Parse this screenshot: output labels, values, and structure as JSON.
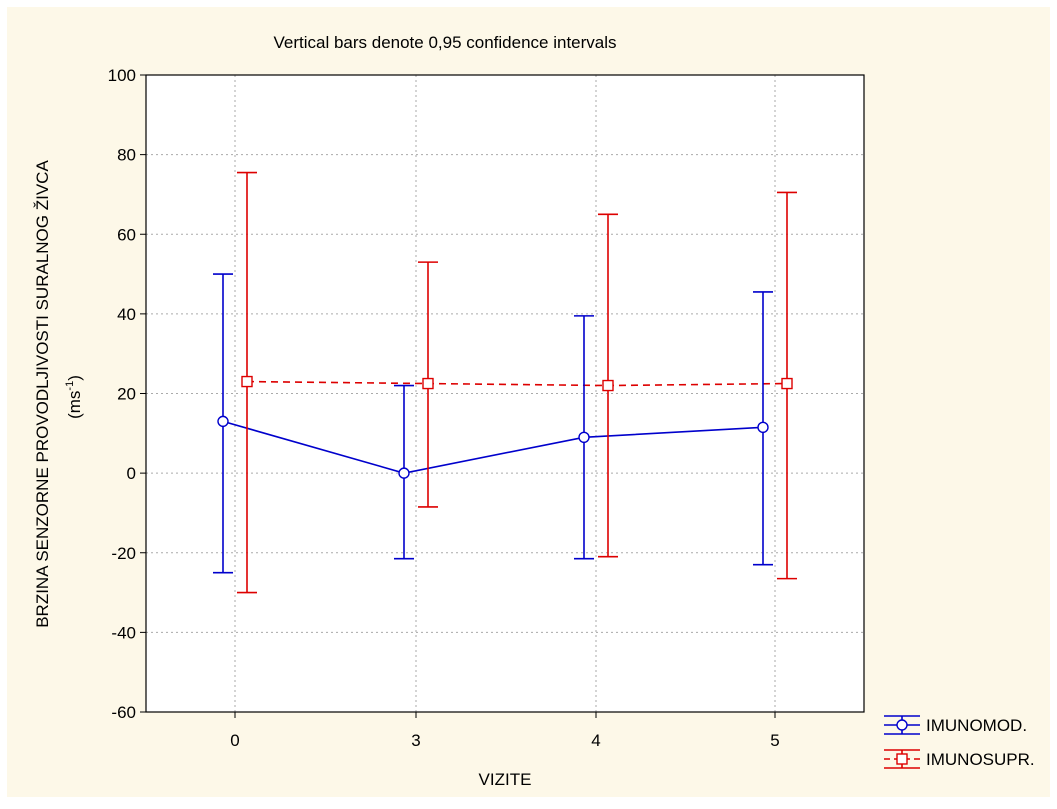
{
  "chart_data": {
    "type": "line",
    "title": "Vertical bars denote 0,95 confidence intervals",
    "xlabel": "VIZITE",
    "ylabel": "BRZINA SENZORNE PROVODLJIVOSTI SURALNOG ŽIVCA",
    "ylabel_unit_base": "(ms",
    "ylabel_unit_sup": "-1",
    "ylabel_unit_close": ")",
    "categories": [
      "0",
      "3",
      "4",
      "5"
    ],
    "ylim": [
      -60,
      100
    ],
    "yticks": [
      "-60",
      "-40",
      "-20",
      "0",
      "20",
      "40",
      "60",
      "80",
      "100"
    ],
    "grid": true,
    "legend_position": "bottom-right outside",
    "series": [
      {
        "name": "IMUNOMOD.",
        "color": "#0000cc",
        "marker": "circle",
        "line_style": "solid",
        "values": [
          13,
          0,
          9,
          11.5
        ],
        "ci_low": [
          -25,
          -21.5,
          -21.5,
          -23
        ],
        "ci_high": [
          50,
          22,
          39.5,
          45.5
        ]
      },
      {
        "name": "IMUNOSUPR.",
        "color": "#dd0000",
        "marker": "square",
        "line_style": "dashed",
        "values": [
          23,
          22.5,
          22,
          22.5
        ],
        "ci_low": [
          -30,
          -8.5,
          -21,
          -26.5
        ],
        "ci_high": [
          75.5,
          53,
          65,
          70.5
        ]
      }
    ],
    "colors": {
      "page_background": "#fdf8e8",
      "plot_background": "#ffffff",
      "grid": "#aaaaaa"
    }
  }
}
